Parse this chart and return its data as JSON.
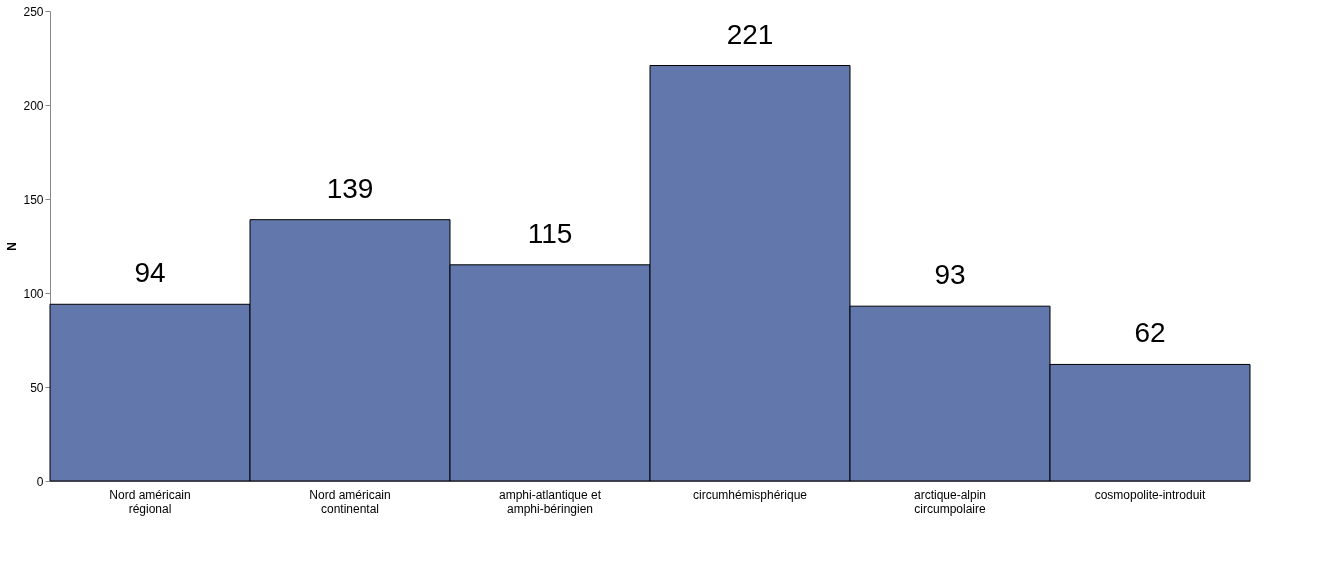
{
  "chart_data": {
    "type": "bar",
    "ylabel": "N",
    "categories": [
      "Nord américain\nrégional",
      "Nord américain\ncontinental",
      "amphi-atlantique et\namphi-béringien",
      "circumhémisphérique",
      "arctique-alpin\ncircumpolaire",
      "cosmopolite-introduit"
    ],
    "values": [
      94,
      139,
      115,
      221,
      93,
      62
    ],
    "color": "#6277ab",
    "ylim": [
      0,
      250
    ],
    "yticks": [
      0,
      50,
      100,
      150,
      200,
      250
    ],
    "grid": false,
    "data_labels": true
  }
}
